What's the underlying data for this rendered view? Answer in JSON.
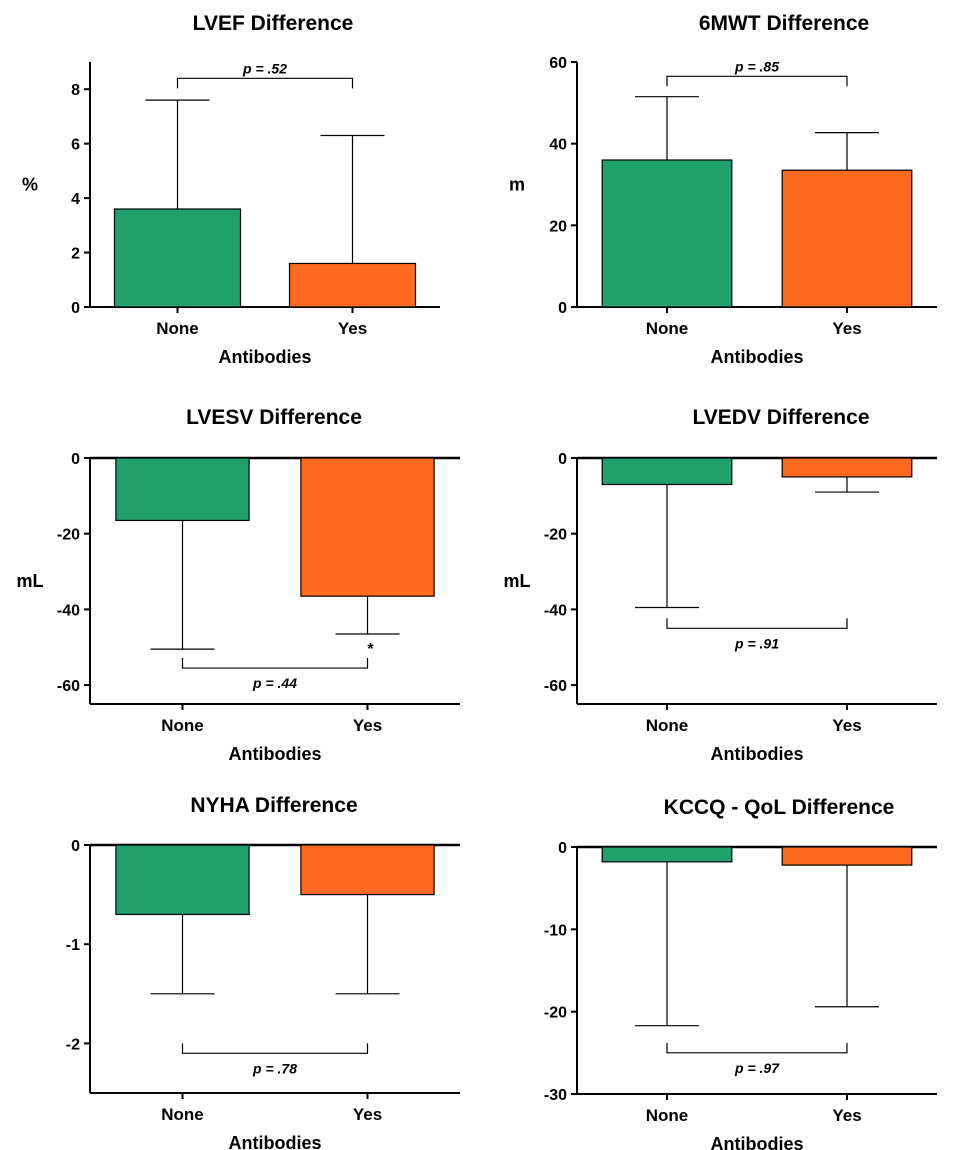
{
  "colors": {
    "none": "#1fa06d",
    "yes": "#fd6a20",
    "axis": "#000000"
  },
  "chart_data": [
    {
      "type": "bar",
      "title": "LVEF Difference",
      "categories": [
        "None",
        "Yes"
      ],
      "values": [
        3.6,
        1.6
      ],
      "error_upper": [
        7.6,
        6.3
      ],
      "xlabel": "Antibodies",
      "ylabel": "%",
      "ylim": [
        0,
        9
      ],
      "yticks": [
        "0",
        "2",
        "4",
        "6",
        "8"
      ],
      "ytick_values": [
        0,
        2,
        4,
        6,
        8
      ],
      "pvalue": "p = .52",
      "bracket_y": 8.4,
      "bracket_side": "above"
    },
    {
      "type": "bar",
      "title": "6MWT Difference",
      "categories": [
        "None",
        "Yes"
      ],
      "values": [
        36,
        33.5
      ],
      "error_upper": [
        51.5,
        42.7
      ],
      "xlabel": "Antibodies",
      "ylabel": "m",
      "ylim": [
        0,
        60
      ],
      "yticks": [
        "0",
        "20",
        "40",
        "60"
      ],
      "ytick_values": [
        0,
        20,
        40,
        60
      ],
      "pvalue": "p = .85",
      "bracket_y": 56.5,
      "bracket_side": "above"
    },
    {
      "type": "bar",
      "title": "LVESV Difference",
      "categories": [
        "None",
        "Yes"
      ],
      "values": [
        -16.5,
        -36.5
      ],
      "error_lower": [
        -50.5,
        -46.5
      ],
      "xlabel": "Antibodies",
      "ylabel": "mL",
      "ylim": [
        -65,
        0
      ],
      "yticks": [
        "0",
        "-20",
        "-40",
        "-60"
      ],
      "ytick_values": [
        0,
        -20,
        -40,
        -60
      ],
      "pvalue": "p = .44",
      "bracket_y": -55.5,
      "bracket_side": "below",
      "annotation": "*"
    },
    {
      "type": "bar",
      "title": "LVEDV Difference",
      "categories": [
        "None",
        "Yes"
      ],
      "values": [
        -7,
        -5
      ],
      "error_lower": [
        -39.5,
        -9
      ],
      "xlabel": "Antibodies",
      "ylabel": "mL",
      "ylim": [
        -65,
        0
      ],
      "yticks": [
        "0",
        "-20",
        "-40",
        "-60"
      ],
      "ytick_values": [
        0,
        -20,
        -40,
        -60
      ],
      "pvalue": "p = .91",
      "bracket_y": -45,
      "bracket_side": "below"
    },
    {
      "type": "bar",
      "title": "NYHA Difference",
      "categories": [
        "None",
        "Yes"
      ],
      "values": [
        -0.7,
        -0.5
      ],
      "error_lower": [
        -1.5,
        -1.5
      ],
      "xlabel": "Antibodies",
      "ylabel": "",
      "ylim": [
        -2.5,
        0
      ],
      "yticks": [
        "0",
        "-1",
        "-2"
      ],
      "ytick_values": [
        0,
        -1,
        -2
      ],
      "pvalue": "p = .78",
      "bracket_y": -2.1,
      "bracket_side": "below"
    },
    {
      "type": "bar",
      "title": "KCCQ - QoL Difference",
      "categories": [
        "None",
        "Yes"
      ],
      "values": [
        -1.8,
        -2.2
      ],
      "error_lower": [
        -21.7,
        -19.4
      ],
      "xlabel": "Antibodies",
      "ylabel": "",
      "ylim": [
        -30,
        0
      ],
      "yticks": [
        "0",
        "-10",
        "-20",
        "-30"
      ],
      "ytick_values": [
        0,
        -10,
        -20,
        -30
      ],
      "pvalue": "p = .97",
      "bracket_y": -25,
      "bracket_side": "below"
    }
  ]
}
